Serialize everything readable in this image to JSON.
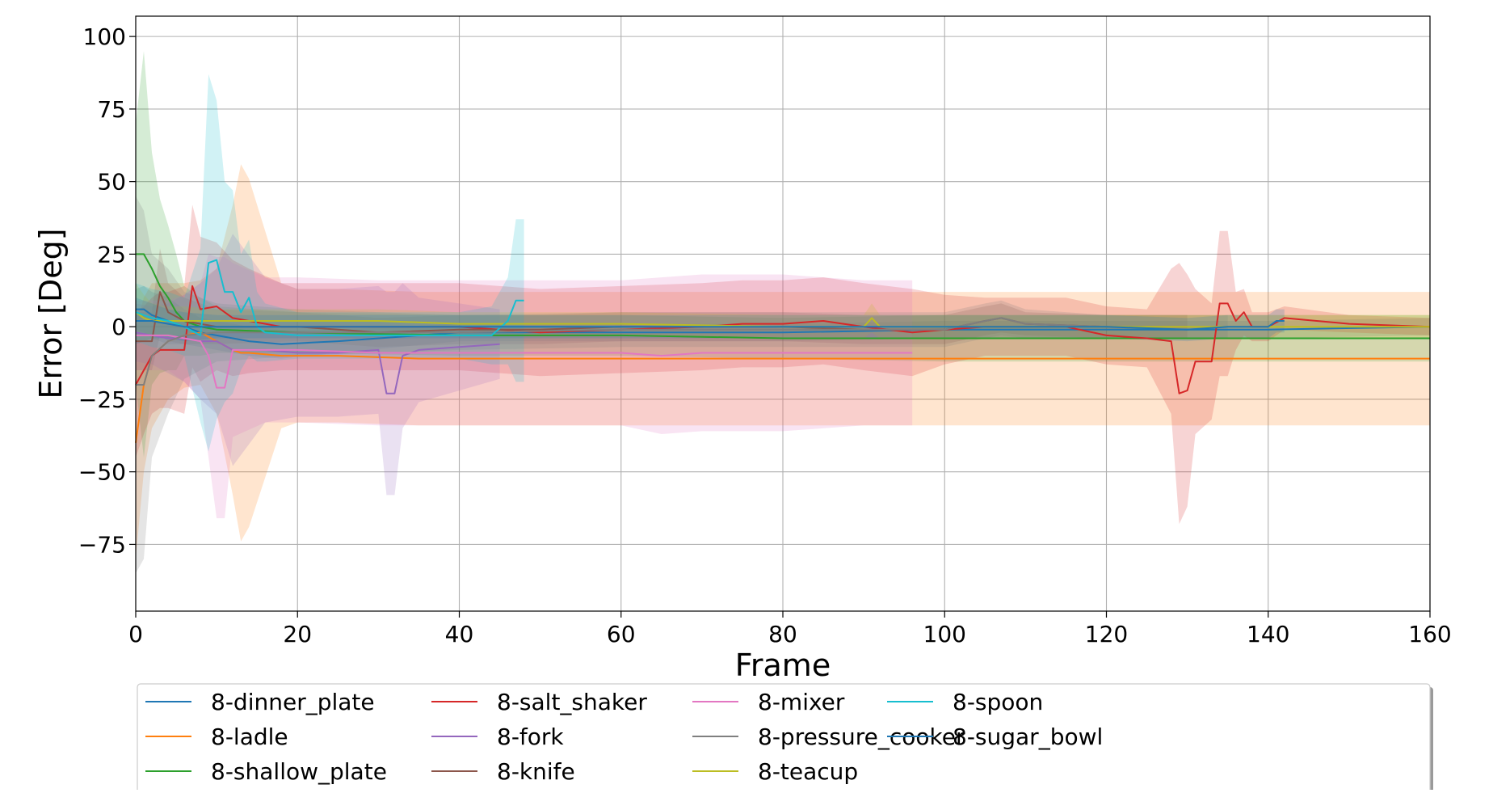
{
  "chart_data": {
    "type": "line",
    "title": "",
    "xlabel": "Frame",
    "ylabel": "Error [Deg]",
    "xlim": [
      0,
      160
    ],
    "ylim": [
      -98,
      107
    ],
    "x_ticks": [
      0,
      20,
      40,
      60,
      80,
      100,
      120,
      140,
      160
    ],
    "x_tick_labels": [
      "0",
      "20",
      "40",
      "60",
      "80",
      "100",
      "120",
      "140",
      "160"
    ],
    "y_ticks": [
      100,
      75,
      50,
      25,
      0,
      -25,
      -50,
      -75
    ],
    "y_tick_labels": [
      "100",
      "75",
      "50",
      "25",
      "0",
      "−25",
      "−50",
      "−75"
    ],
    "grid": true,
    "legend_position": "below plot, 5 columns",
    "series": [
      {
        "name": "8-dinner_plate",
        "color": "#1f77b4",
        "x": [
          0,
          1,
          2,
          4,
          6,
          8,
          10,
          14,
          18,
          25,
          40,
          60,
          80,
          100,
          120,
          140,
          160
        ],
        "y": [
          6,
          6,
          4,
          2,
          0,
          -2,
          -3,
          -5,
          -6,
          -5,
          -2,
          -2,
          -2,
          -1,
          -1,
          -1,
          0
        ],
        "band": [
          7,
          8,
          8,
          8,
          6,
          5,
          5,
          5,
          5,
          4,
          3,
          3,
          3,
          3,
          3,
          3,
          3
        ]
      },
      {
        "name": "8-ladle",
        "color": "#ff7f0e",
        "x": [
          0,
          1,
          2,
          4,
          6,
          8,
          10,
          12,
          13,
          14,
          18,
          20,
          25,
          35,
          40,
          60,
          80,
          100,
          120,
          140,
          160
        ],
        "y": [
          -40,
          -20,
          -10,
          -5,
          -3,
          -2,
          -5,
          -8,
          -9,
          -9,
          -10,
          -10,
          -10,
          -11,
          -11,
          -11,
          -11,
          -11,
          -11,
          -11,
          -11
        ],
        "band": [
          40,
          30,
          25,
          20,
          18,
          18,
          25,
          50,
          65,
          60,
          25,
          23,
          23,
          23,
          23,
          23,
          23,
          23,
          23,
          23,
          23
        ]
      },
      {
        "name": "8-shallow_plate",
        "color": "#2ca02c",
        "x": [
          0,
          1,
          2,
          3,
          4,
          5,
          6,
          8,
          10,
          20,
          40,
          60,
          80,
          100,
          120,
          140,
          160
        ],
        "y": [
          25,
          25,
          20,
          14,
          10,
          5,
          2,
          0,
          -1,
          -2,
          -3,
          -3,
          -4,
          -4,
          -4,
          -4,
          -4
        ],
        "band": [
          45,
          70,
          40,
          30,
          25,
          20,
          12,
          10,
          8,
          7,
          7,
          7,
          7,
          8,
          8,
          8,
          8
        ]
      },
      {
        "name": "8-salt_shaker",
        "color": "#d62728",
        "x": [
          0,
          1,
          2,
          3,
          4,
          6,
          7,
          8,
          10,
          12,
          14,
          18,
          25,
          40,
          50,
          60,
          70,
          75,
          80,
          85,
          90,
          96,
          100,
          105,
          110,
          115,
          120,
          125,
          128,
          129,
          130,
          131,
          133,
          134,
          135,
          136,
          137,
          138,
          140,
          142,
          150,
          160
        ],
        "y": [
          -20,
          -15,
          -10,
          -8,
          -8,
          -8,
          14,
          6,
          7,
          3,
          2,
          0,
          0,
          0,
          -2,
          -1,
          0,
          1,
          1,
          2,
          0,
          -2,
          -1,
          0,
          0,
          0,
          -3,
          -4,
          -5,
          -23,
          -22,
          -12,
          -12,
          8,
          8,
          2,
          5,
          0,
          0,
          3,
          1,
          0
        ],
        "band": [
          25,
          22,
          20,
          20,
          20,
          22,
          28,
          25,
          22,
          20,
          18,
          15,
          15,
          15,
          15,
          15,
          15,
          15,
          15,
          15,
          15,
          15,
          12,
          10,
          10,
          10,
          10,
          10,
          25,
          45,
          40,
          25,
          20,
          25,
          25,
          10,
          8,
          5,
          5,
          4,
          3,
          3
        ]
      },
      {
        "name": "8-fork",
        "color": "#9467bd",
        "x": [
          0,
          2,
          4,
          6,
          8,
          10,
          12,
          16,
          20,
          25,
          30,
          31,
          32,
          33,
          35,
          40,
          45
        ],
        "y": [
          -2,
          -3,
          -4,
          -4,
          -5,
          -5,
          -8,
          -8,
          -9,
          -9,
          -8,
          -23,
          -23,
          -10,
          -8,
          -7,
          -6
        ],
        "band": [
          10,
          10,
          12,
          15,
          20,
          25,
          40,
          25,
          22,
          22,
          22,
          35,
          35,
          25,
          18,
          15,
          12
        ]
      },
      {
        "name": "8-knife",
        "color": "#8c564b",
        "x": [
          0,
          2,
          3,
          4,
          6,
          10,
          20,
          30,
          40,
          50,
          60,
          70,
          80,
          90,
          100,
          105,
          107,
          110,
          120,
          130
        ],
        "y": [
          -5,
          -5,
          12,
          5,
          2,
          0,
          0,
          -2,
          -1,
          -1,
          0,
          0,
          0,
          -1,
          -1,
          2,
          3,
          1,
          0,
          0
        ],
        "band": [
          10,
          10,
          15,
          10,
          8,
          6,
          5,
          5,
          5,
          5,
          5,
          5,
          5,
          5,
          5,
          5,
          5,
          4,
          4,
          4
        ]
      },
      {
        "name": "8-mixer",
        "color": "#e377c2",
        "x": [
          0,
          2,
          4,
          6,
          8,
          9,
          10,
          11,
          12,
          16,
          20,
          30,
          40,
          50,
          60,
          65,
          70,
          80,
          90,
          96
        ],
        "y": [
          -3,
          -3,
          -3,
          -4,
          -5,
          -10,
          -21,
          -21,
          -8,
          -8,
          -8,
          -9,
          -9,
          -9,
          -9,
          -10,
          -9,
          -9,
          -9,
          -9
        ],
        "band": [
          12,
          12,
          12,
          15,
          20,
          35,
          45,
          45,
          30,
          25,
          25,
          25,
          25,
          25,
          25,
          27,
          27,
          27,
          25,
          25
        ]
      },
      {
        "name": "8-pressure_cooker",
        "color": "#7f7f7f",
        "x": [
          0,
          1,
          2,
          4,
          6,
          10,
          20,
          40,
          60,
          80,
          100,
          105,
          107,
          110,
          120,
          135
        ],
        "y": [
          -20,
          -20,
          -10,
          -5,
          -3,
          -2,
          -2,
          -2,
          -1,
          -1,
          -1,
          2,
          3,
          1,
          0,
          0
        ],
        "band": [
          65,
          60,
          35,
          25,
          15,
          10,
          8,
          6,
          6,
          6,
          6,
          6,
          6,
          5,
          4,
          4
        ]
      },
      {
        "name": "8-teacup",
        "color": "#bcbd22",
        "x": [
          0,
          1,
          2,
          4,
          6,
          10,
          20,
          30,
          40,
          60,
          80,
          90,
          91,
          92,
          100,
          120,
          140,
          160
        ],
        "y": [
          5,
          3,
          2,
          2,
          2,
          2,
          2,
          2,
          1,
          1,
          0,
          0,
          3,
          0,
          0,
          0,
          0,
          0
        ],
        "band": [
          10,
          8,
          6,
          5,
          5,
          4,
          4,
          4,
          4,
          4,
          4,
          4,
          5,
          4,
          4,
          4,
          4,
          4
        ]
      },
      {
        "name": "8-spoon",
        "color": "#17becf",
        "x": [
          0,
          2,
          4,
          6,
          8,
          9,
          10,
          11,
          12,
          13,
          14,
          15,
          16,
          20,
          25,
          30,
          40,
          44,
          46,
          47,
          48
        ],
        "y": [
          5,
          3,
          2,
          0,
          -3,
          22,
          23,
          12,
          12,
          5,
          10,
          0,
          -2,
          -3,
          -3,
          -3,
          -3,
          -3,
          2,
          9,
          9
        ],
        "band": [
          10,
          10,
          10,
          10,
          30,
          65,
          55,
          38,
          35,
          20,
          20,
          12,
          10,
          8,
          8,
          8,
          8,
          10,
          15,
          28,
          28
        ]
      },
      {
        "name": "8-sugar_bowl",
        "color": "#1f77b4",
        "x": [
          0,
          2,
          4,
          6,
          10,
          20,
          40,
          60,
          80,
          100,
          120,
          130,
          135,
          138,
          140,
          141,
          142
        ],
        "y": [
          2,
          2,
          1,
          0,
          0,
          0,
          0,
          0,
          0,
          0,
          0,
          -1,
          0,
          0,
          0,
          2,
          2
        ],
        "band": [
          8,
          6,
          5,
          5,
          4,
          4,
          4,
          4,
          4,
          4,
          4,
          4,
          4,
          4,
          4,
          4,
          4
        ]
      }
    ]
  }
}
